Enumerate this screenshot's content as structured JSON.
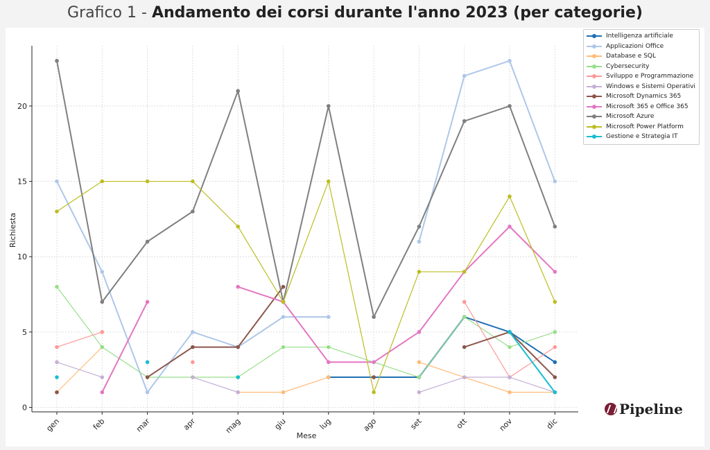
{
  "header": {
    "title_prefix": "Grafico 1 - ",
    "title_main": "Andamento dei corsi durante l'anno 2023 (per categorie)"
  },
  "logo": {
    "text": "Pipeline",
    "icon": "pipeline-logo-icon"
  },
  "chart_data": {
    "type": "line",
    "xlabel": "Mese",
    "ylabel": "Richiesta",
    "categories": [
      "gen",
      "feb",
      "mar",
      "apr",
      "mag",
      "giu",
      "lug",
      "ago",
      "set",
      "ott",
      "nov",
      "dic"
    ],
    "ylim": [
      -0.3,
      24
    ],
    "yticks": [
      0,
      5,
      10,
      15,
      20
    ],
    "grid": true,
    "legend_position": "top-right",
    "series": [
      {
        "name": "Intelligenza artificiale",
        "color": "#1f6fb4",
        "width": 2,
        "values": [
          null,
          null,
          null,
          null,
          null,
          null,
          2,
          2,
          2,
          6,
          5,
          3
        ]
      },
      {
        "name": "Applicazioni Office",
        "color": "#aec7e8",
        "width": 2,
        "values": [
          15,
          9,
          1,
          5,
          4,
          6,
          6,
          null,
          11,
          22,
          23,
          15
        ]
      },
      {
        "name": "Database e SQL",
        "color": "#ffbb78",
        "width": 1.2,
        "values": [
          1,
          4,
          null,
          null,
          1,
          1,
          2,
          null,
          3,
          2,
          1,
          1
        ]
      },
      {
        "name": "Cybersecurity",
        "color": "#98df8a",
        "width": 1.2,
        "values": [
          8,
          4,
          2,
          2,
          2,
          4,
          4,
          3,
          2,
          6,
          4,
          5
        ]
      },
      {
        "name": "Sviluppo e Programmazione",
        "color": "#ff9896",
        "width": 1.2,
        "values": [
          4,
          5,
          null,
          3,
          null,
          null,
          null,
          null,
          null,
          7,
          2,
          4
        ]
      },
      {
        "name": "Windows e Sistemi Operativi",
        "color": "#c5b0d5",
        "width": 1.2,
        "values": [
          3,
          2,
          null,
          2,
          1,
          null,
          null,
          null,
          1,
          2,
          2,
          1
        ]
      },
      {
        "name": "Microsoft Dynamics 365",
        "color": "#8c564b",
        "width": 2,
        "values": [
          1,
          null,
          2,
          4,
          4,
          8,
          null,
          2,
          null,
          4,
          5,
          2
        ]
      },
      {
        "name": "Microsoft 365 e Office 365",
        "color": "#e377c2",
        "width": 2,
        "values": [
          null,
          1,
          7,
          null,
          8,
          7,
          3,
          3,
          5,
          9,
          12,
          9
        ]
      },
      {
        "name": "Microsoft Azure",
        "color": "#7f7f7f",
        "width": 2,
        "values": [
          23,
          7,
          11,
          13,
          21,
          7,
          20,
          6,
          12,
          19,
          20,
          12
        ]
      },
      {
        "name": "Microsoft Power Platform",
        "color": "#bcbd22",
        "width": 1.2,
        "values": [
          13,
          15,
          15,
          15,
          12,
          7,
          15,
          1,
          9,
          9,
          14,
          7
        ]
      },
      {
        "name": "Gestione e Strategia IT",
        "color": "#17becf",
        "width": 2,
        "values": [
          2,
          null,
          3,
          null,
          2,
          null,
          null,
          null,
          null,
          null,
          5,
          1
        ]
      }
    ]
  }
}
